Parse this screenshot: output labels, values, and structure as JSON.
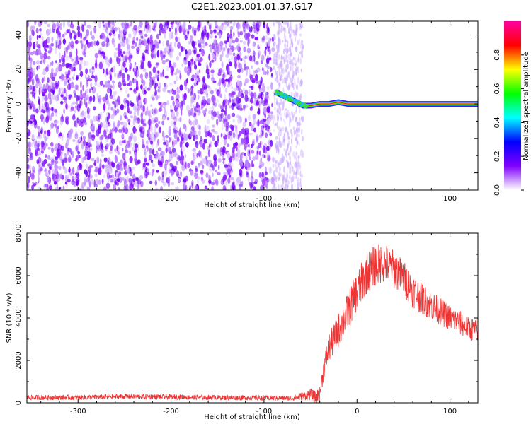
{
  "title": "C2E1.2023.001.01.37.G17",
  "chart_data": [
    {
      "type": "heatmap",
      "name": "spectrogram",
      "xlabel": "Height of straight line (km)",
      "ylabel": "Frequency (Hz)",
      "xlim": [
        -355,
        130
      ],
      "ylim": [
        -50,
        48
      ],
      "xticks": [
        -300,
        -200,
        -100,
        0,
        100
      ],
      "yticks": [
        -40,
        -20,
        0,
        20,
        40
      ],
      "colorbar": {
        "label": "Normalized spectral amplitude",
        "range": [
          0,
          1
        ],
        "ticks": [
          "0.0",
          "0.2",
          "0.4",
          "0.6",
          "0.8"
        ],
        "colormap": [
          "#ffffff",
          "#8000ff",
          "#0000ff",
          "#00ffff",
          "#00ff00",
          "#ffff00",
          "#ff0000",
          "#ff00a0"
        ]
      },
      "noise_region_x": [
        -355,
        -90
      ],
      "transition_region_x": [
        -90,
        -58
      ],
      "signal_track": [
        {
          "x": -88,
          "y": 7
        },
        {
          "x": -80,
          "y": 5
        },
        {
          "x": -72,
          "y": 3
        },
        {
          "x": -65,
          "y": 1
        },
        {
          "x": -58,
          "y": -1
        },
        {
          "x": -50,
          "y": -1
        },
        {
          "x": -40,
          "y": 0
        },
        {
          "x": -30,
          "y": 0
        },
        {
          "x": -20,
          "y": 1
        },
        {
          "x": -10,
          "y": 0
        },
        {
          "x": 0,
          "y": 0
        },
        {
          "x": 130,
          "y": 0
        }
      ]
    },
    {
      "type": "line",
      "name": "snr",
      "xlabel": "Height of straight line (km)",
      "ylabel": "SNR (10 * v/v)",
      "xlim": [
        -355,
        130
      ],
      "ylim": [
        0,
        8000
      ],
      "xticks": [
        -300,
        -200,
        -100,
        0,
        100
      ],
      "yticks": [
        0,
        2000,
        4000,
        6000,
        8000
      ],
      "color": "#ee3333",
      "envelope": {
        "x": [
          -355,
          -300,
          -250,
          -200,
          -150,
          -100,
          -70,
          -60,
          -50,
          -45,
          -40,
          -35,
          -30,
          -20,
          -10,
          0,
          10,
          20,
          30,
          40,
          50,
          60,
          70,
          80,
          90,
          100,
          110,
          120,
          130
        ],
        "y": [
          250,
          250,
          300,
          280,
          250,
          230,
          220,
          300,
          400,
          250,
          400,
          1800,
          2600,
          3400,
          4300,
          5200,
          6100,
          6500,
          6600,
          6300,
          5900,
          5300,
          4900,
          4600,
          4300,
          4000,
          3800,
          3500,
          3400
        ]
      },
      "noise_amplitude": {
        "x": [
          -355,
          -70,
          -40,
          -30,
          -10,
          0,
          20,
          60,
          100,
          130
        ],
        "y": [
          120,
          120,
          350,
          700,
          900,
          1000,
          1000,
          800,
          600,
          550
        ]
      }
    }
  ]
}
